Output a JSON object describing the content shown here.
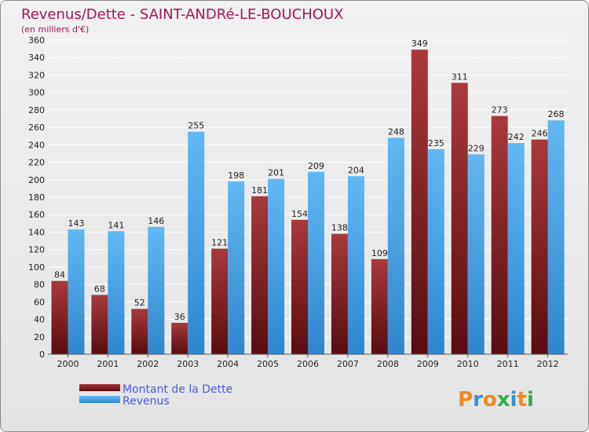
{
  "chart_data": {
    "type": "bar",
    "title": "Revenus/Dette - SAINT-ANDRé-LE-BOUCHOUX",
    "subtitle": "(en milliers d'€)",
    "categories": [
      "2000",
      "2001",
      "2002",
      "2003",
      "2004",
      "2005",
      "2006",
      "2007",
      "2008",
      "2009",
      "2010",
      "2011",
      "2012"
    ],
    "series": [
      {
        "name": "Montant de la Dette",
        "color": "#7a1a1e",
        "values": [
          84,
          68,
          52,
          36,
          121,
          181,
          154,
          138,
          109,
          349,
          311,
          273,
          246
        ]
      },
      {
        "name": "Revenus",
        "color": "#4ea3e6",
        "values": [
          143,
          141,
          146,
          255,
          198,
          201,
          209,
          204,
          248,
          235,
          229,
          242,
          268
        ]
      }
    ],
    "ylim": [
      0,
      360
    ],
    "ytick_step": 20,
    "grid": true,
    "legend_position": "bottom-left"
  },
  "logo": {
    "text": "Proxiti"
  }
}
